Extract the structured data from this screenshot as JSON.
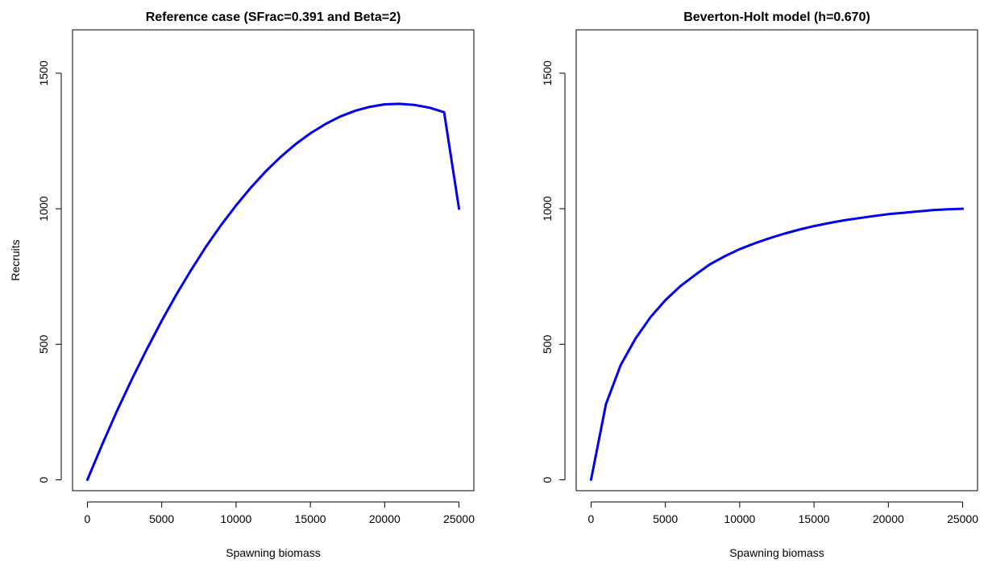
{
  "chart_data": [
    {
      "type": "line",
      "title": "Reference case (SFrac=0.391 and Beta=2)",
      "xlabel": "Spawning biomass",
      "ylabel": "Recruits",
      "xlim": [
        -1000,
        26000
      ],
      "ylim": [
        -40,
        1660
      ],
      "xticks": [
        0,
        5000,
        10000,
        15000,
        20000,
        25000
      ],
      "yticks": [
        0,
        500,
        1000,
        1500
      ],
      "grid": false,
      "color": "#0000ee",
      "series": [
        {
          "x": [
            0,
            1000,
            2000,
            3000,
            4000,
            5000,
            6000,
            7000,
            8000,
            9000,
            10000,
            11000,
            12000,
            13000,
            14000,
            15000,
            16000,
            17000,
            18000,
            19000,
            20000,
            21000,
            22000,
            23000,
            24000,
            25000
          ],
          "y": [
            0,
            131,
            255,
            372,
            482,
            587,
            685,
            776,
            862,
            940,
            1012,
            1078,
            1138,
            1191,
            1238,
            1278,
            1312,
            1340,
            1361,
            1376,
            1385,
            1387,
            1383,
            1373,
            1356,
            1000
          ]
        }
      ]
    },
    {
      "type": "line",
      "title": "Beverton-Holt model (h=0.670)",
      "xlabel": "Spawning biomass",
      "ylabel": "",
      "xlim": [
        -1000,
        26000
      ],
      "ylim": [
        -40,
        1660
      ],
      "xticks": [
        0,
        5000,
        10000,
        15000,
        20000,
        25000
      ],
      "yticks": [
        0,
        500,
        1000,
        1500
      ],
      "grid": false,
      "color": "#0000ee",
      "series": [
        {
          "x": [
            0,
            1000,
            2000,
            3000,
            4000,
            5000,
            6000,
            7000,
            8000,
            9000,
            10000,
            11000,
            12000,
            13000,
            14000,
            15000,
            16000,
            17000,
            18000,
            19000,
            20000,
            21000,
            22000,
            23000,
            24000,
            25000
          ],
          "y": [
            0,
            279,
            424,
            522,
            600,
            663,
            714,
            756,
            795,
            825,
            851,
            872,
            891,
            908,
            923,
            936,
            947,
            957,
            965,
            973,
            980,
            985,
            990,
            995,
            998,
            1000
          ]
        }
      ]
    }
  ]
}
